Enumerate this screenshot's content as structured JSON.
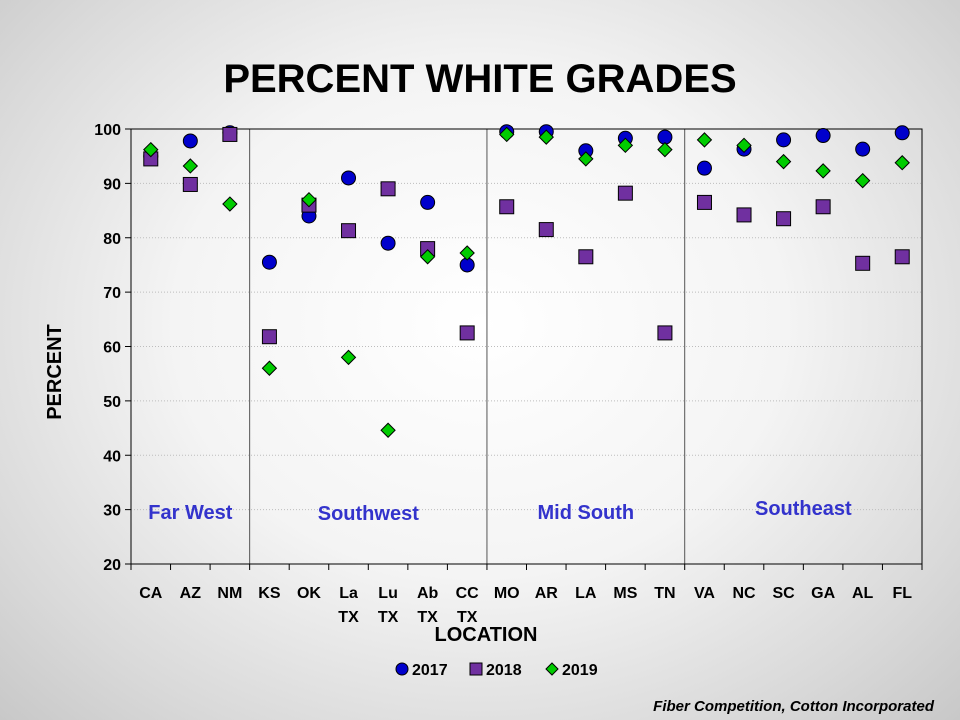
{
  "chart_data": {
    "type": "scatter",
    "title": "PERCENT WHITE GRADES",
    "xlabel": "LOCATION",
    "ylabel": "PERCENT",
    "ylim": [
      20,
      100
    ],
    "yticks": [
      "20",
      "30",
      "40",
      "50",
      "60",
      "70",
      "80",
      "90",
      "100"
    ],
    "categories": [
      [
        "CA"
      ],
      [
        "AZ"
      ],
      [
        "NM"
      ],
      [
        "KS"
      ],
      [
        "OK"
      ],
      [
        "La",
        "TX"
      ],
      [
        "Lu",
        "TX"
      ],
      [
        "Ab",
        "TX"
      ],
      [
        "CC",
        "TX"
      ],
      [
        "MO"
      ],
      [
        "AR"
      ],
      [
        "LA"
      ],
      [
        "MS"
      ],
      [
        "TN"
      ],
      [
        "VA"
      ],
      [
        "NC"
      ],
      [
        "SC"
      ],
      [
        "GA"
      ],
      [
        "AL"
      ],
      [
        "FL"
      ]
    ],
    "series": [
      {
        "name": "2017",
        "marker": "circle",
        "color": "#0000CC",
        "values": [
          95.0,
          97.8,
          99.3,
          75.5,
          84.0,
          91.0,
          79.0,
          86.5,
          75.0,
          99.5,
          99.5,
          96.0,
          98.3,
          98.5,
          92.8,
          96.3,
          98.0,
          98.8,
          96.3,
          99.3
        ]
      },
      {
        "name": "2018",
        "marker": "square",
        "color": "#7030A0",
        "values": [
          94.5,
          89.8,
          99.0,
          61.8,
          86.0,
          81.3,
          89.0,
          78.0,
          62.5,
          85.7,
          81.5,
          76.5,
          88.2,
          62.5,
          86.5,
          84.2,
          83.5,
          85.7,
          75.3,
          76.5
        ]
      },
      {
        "name": "2019",
        "marker": "diamond",
        "color": "#00CC00",
        "values": [
          96.2,
          93.2,
          86.2,
          56.0,
          87.0,
          58.0,
          44.6,
          76.5,
          77.2,
          99.0,
          98.5,
          94.5,
          97.0,
          96.2,
          98.0,
          97.0,
          94.0,
          92.3,
          90.5,
          93.8
        ]
      }
    ],
    "regions": [
      {
        "label": "Far West",
        "start": 0,
        "end": 2
      },
      {
        "label": "Southwest",
        "start": 3,
        "end": 8
      },
      {
        "label": "Mid South",
        "start": 9,
        "end": 13
      },
      {
        "label": "Southeast",
        "start": 14,
        "end": 19
      }
    ],
    "region_color": "#3333CC",
    "grid": true,
    "legend_position": "bottom-center"
  },
  "footer": {
    "credit": "Fiber Competition, Cotton Incorporated"
  }
}
